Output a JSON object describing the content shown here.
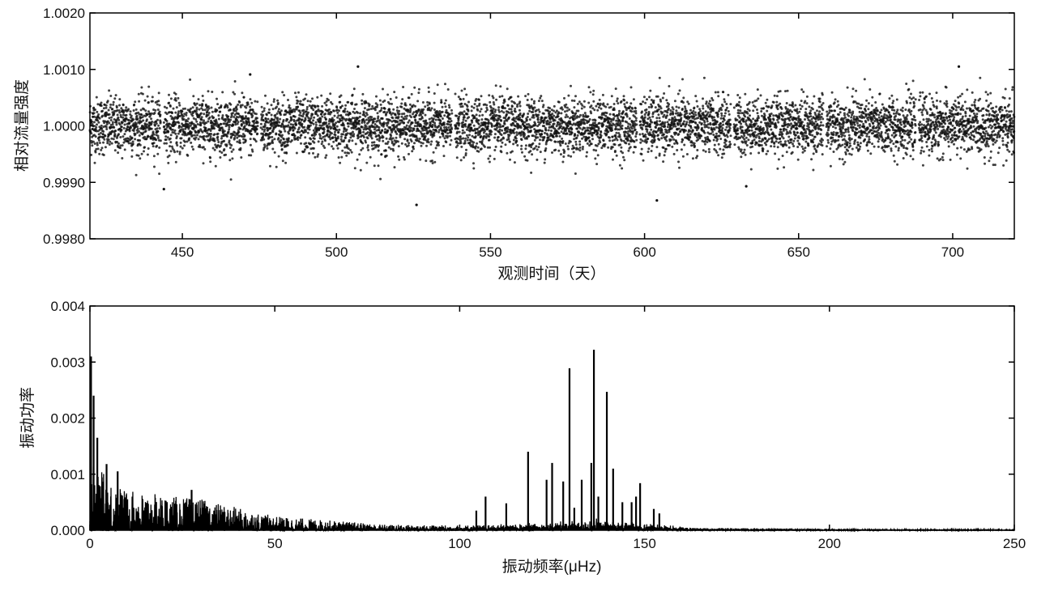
{
  "chart_data": [
    {
      "type": "scatter",
      "xlabel": "观测时间（天）",
      "ylabel": "相对流量强度",
      "xlim": [
        420,
        720
      ],
      "ylim": [
        0.998,
        1.002
      ],
      "xticks": [
        450,
        500,
        550,
        600,
        650,
        700
      ],
      "xtick_labels": [
        "450",
        "500",
        "550",
        "600",
        "650",
        "700"
      ],
      "yticks": [
        0.998,
        0.999,
        1.0,
        1.001,
        1.002
      ],
      "ytick_labels": [
        "0.9980",
        "0.9990",
        "1.0000",
        "1.0010",
        "1.0020"
      ],
      "grid": false,
      "marker_color": "#111111",
      "series_summary": {
        "mean": 1.0,
        "std": 0.00025,
        "time_range": [
          420,
          720
        ]
      },
      "gaps": [
        443.5,
        475,
        538,
        598,
        628.5,
        658.5,
        688.5
      ],
      "outliers": [
        {
          "x": 444,
          "y": 0.99888
        },
        {
          "x": 472,
          "y": 1.00091
        },
        {
          "x": 507,
          "y": 1.00105
        },
        {
          "x": 526,
          "y": 0.9986
        },
        {
          "x": 604,
          "y": 0.99868
        },
        {
          "x": 633,
          "y": 0.99893
        },
        {
          "x": 702,
          "y": 1.00105
        }
      ]
    },
    {
      "type": "line",
      "xlabel": "振动频率(μHz)",
      "ylabel": "振动功率",
      "xlim": [
        0,
        250
      ],
      "ylim": [
        0,
        0.004
      ],
      "xticks": [
        0,
        50,
        100,
        150,
        200,
        250
      ],
      "xtick_labels": [
        "0",
        "50",
        "100",
        "150",
        "200",
        "250"
      ],
      "yticks": [
        0,
        0.001,
        0.002,
        0.003,
        0.004
      ],
      "ytick_labels": [
        "0.000",
        "0.001",
        "0.002",
        "0.003",
        "0.004"
      ],
      "grid": false,
      "line_color": "#000000",
      "peaks": [
        {
          "x": 0.3,
          "y": 0.0031
        },
        {
          "x": 1.0,
          "y": 0.0024
        },
        {
          "x": 2.0,
          "y": 0.00165
        },
        {
          "x": 4.5,
          "y": 0.00118
        },
        {
          "x": 7.5,
          "y": 0.00105
        },
        {
          "x": 27.5,
          "y": 0.00072
        },
        {
          "x": 104.5,
          "y": 0.00035
        },
        {
          "x": 107.0,
          "y": 0.0006
        },
        {
          "x": 112.6,
          "y": 0.00048
        },
        {
          "x": 118.5,
          "y": 0.0014
        },
        {
          "x": 123.5,
          "y": 0.0009
        },
        {
          "x": 125.0,
          "y": 0.0012
        },
        {
          "x": 128.0,
          "y": 0.00087
        },
        {
          "x": 129.7,
          "y": 0.00289
        },
        {
          "x": 131.0,
          "y": 0.0004
        },
        {
          "x": 133.0,
          "y": 0.0009
        },
        {
          "x": 135.6,
          "y": 0.0012
        },
        {
          "x": 136.3,
          "y": 0.00322
        },
        {
          "x": 137.5,
          "y": 0.0006
        },
        {
          "x": 139.8,
          "y": 0.00247
        },
        {
          "x": 141.5,
          "y": 0.0011
        },
        {
          "x": 144.0,
          "y": 0.0005
        },
        {
          "x": 146.5,
          "y": 0.0005
        },
        {
          "x": 147.7,
          "y": 0.0006
        },
        {
          "x": 148.8,
          "y": 0.00084
        },
        {
          "x": 152.5,
          "y": 0.00038
        },
        {
          "x": 154.0,
          "y": 0.0003
        }
      ],
      "background_envelope": [
        {
          "x": 0,
          "y": 0.0012
        },
        {
          "x": 10,
          "y": 0.0007
        },
        {
          "x": 30,
          "y": 0.00055
        },
        {
          "x": 50,
          "y": 0.00025
        },
        {
          "x": 80,
          "y": 0.0001
        },
        {
          "x": 110,
          "y": 8e-05
        },
        {
          "x": 140,
          "y": 0.0001
        },
        {
          "x": 165,
          "y": 4e-05
        },
        {
          "x": 250,
          "y": 1e-05
        }
      ]
    }
  ]
}
